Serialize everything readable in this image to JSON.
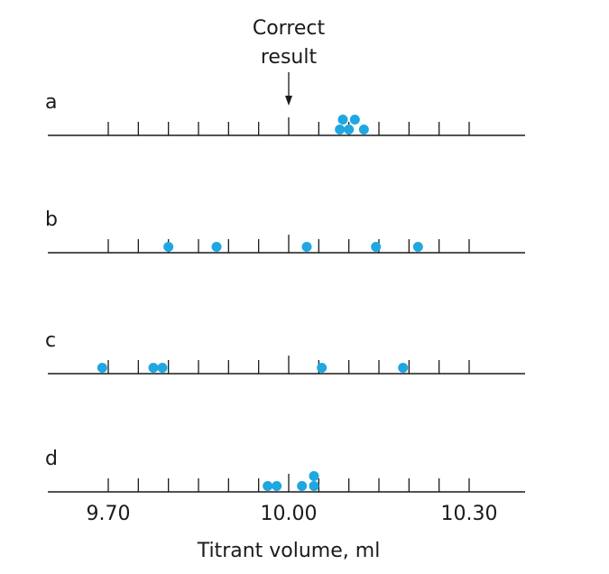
{
  "chart_data": {
    "type": "scatter",
    "title": "",
    "xlabel": "Titrant volume, ml",
    "ylabel": "",
    "xlim": [
      9.7,
      10.3
    ],
    "tick_step": 0.05,
    "tick_labels": [
      "9.70",
      "10.00",
      "10.30"
    ],
    "tick_label_values": [
      9.7,
      10.0,
      10.3
    ],
    "reference": {
      "label_lines": [
        "Correct",
        "result"
      ],
      "value": 10.0
    },
    "dot_color": "#1ea7e1",
    "grid": false,
    "series": [
      {
        "name": "a",
        "values": [
          10.085,
          10.09,
          10.1,
          10.11,
          10.125
        ]
      },
      {
        "name": "b",
        "values": [
          9.8,
          9.88,
          10.03,
          10.145,
          10.215
        ]
      },
      {
        "name": "c",
        "values": [
          9.69,
          9.775,
          9.79,
          10.055,
          10.19
        ]
      },
      {
        "name": "d",
        "values": [
          9.965,
          9.98,
          10.022,
          10.042,
          10.042
        ]
      }
    ]
  }
}
